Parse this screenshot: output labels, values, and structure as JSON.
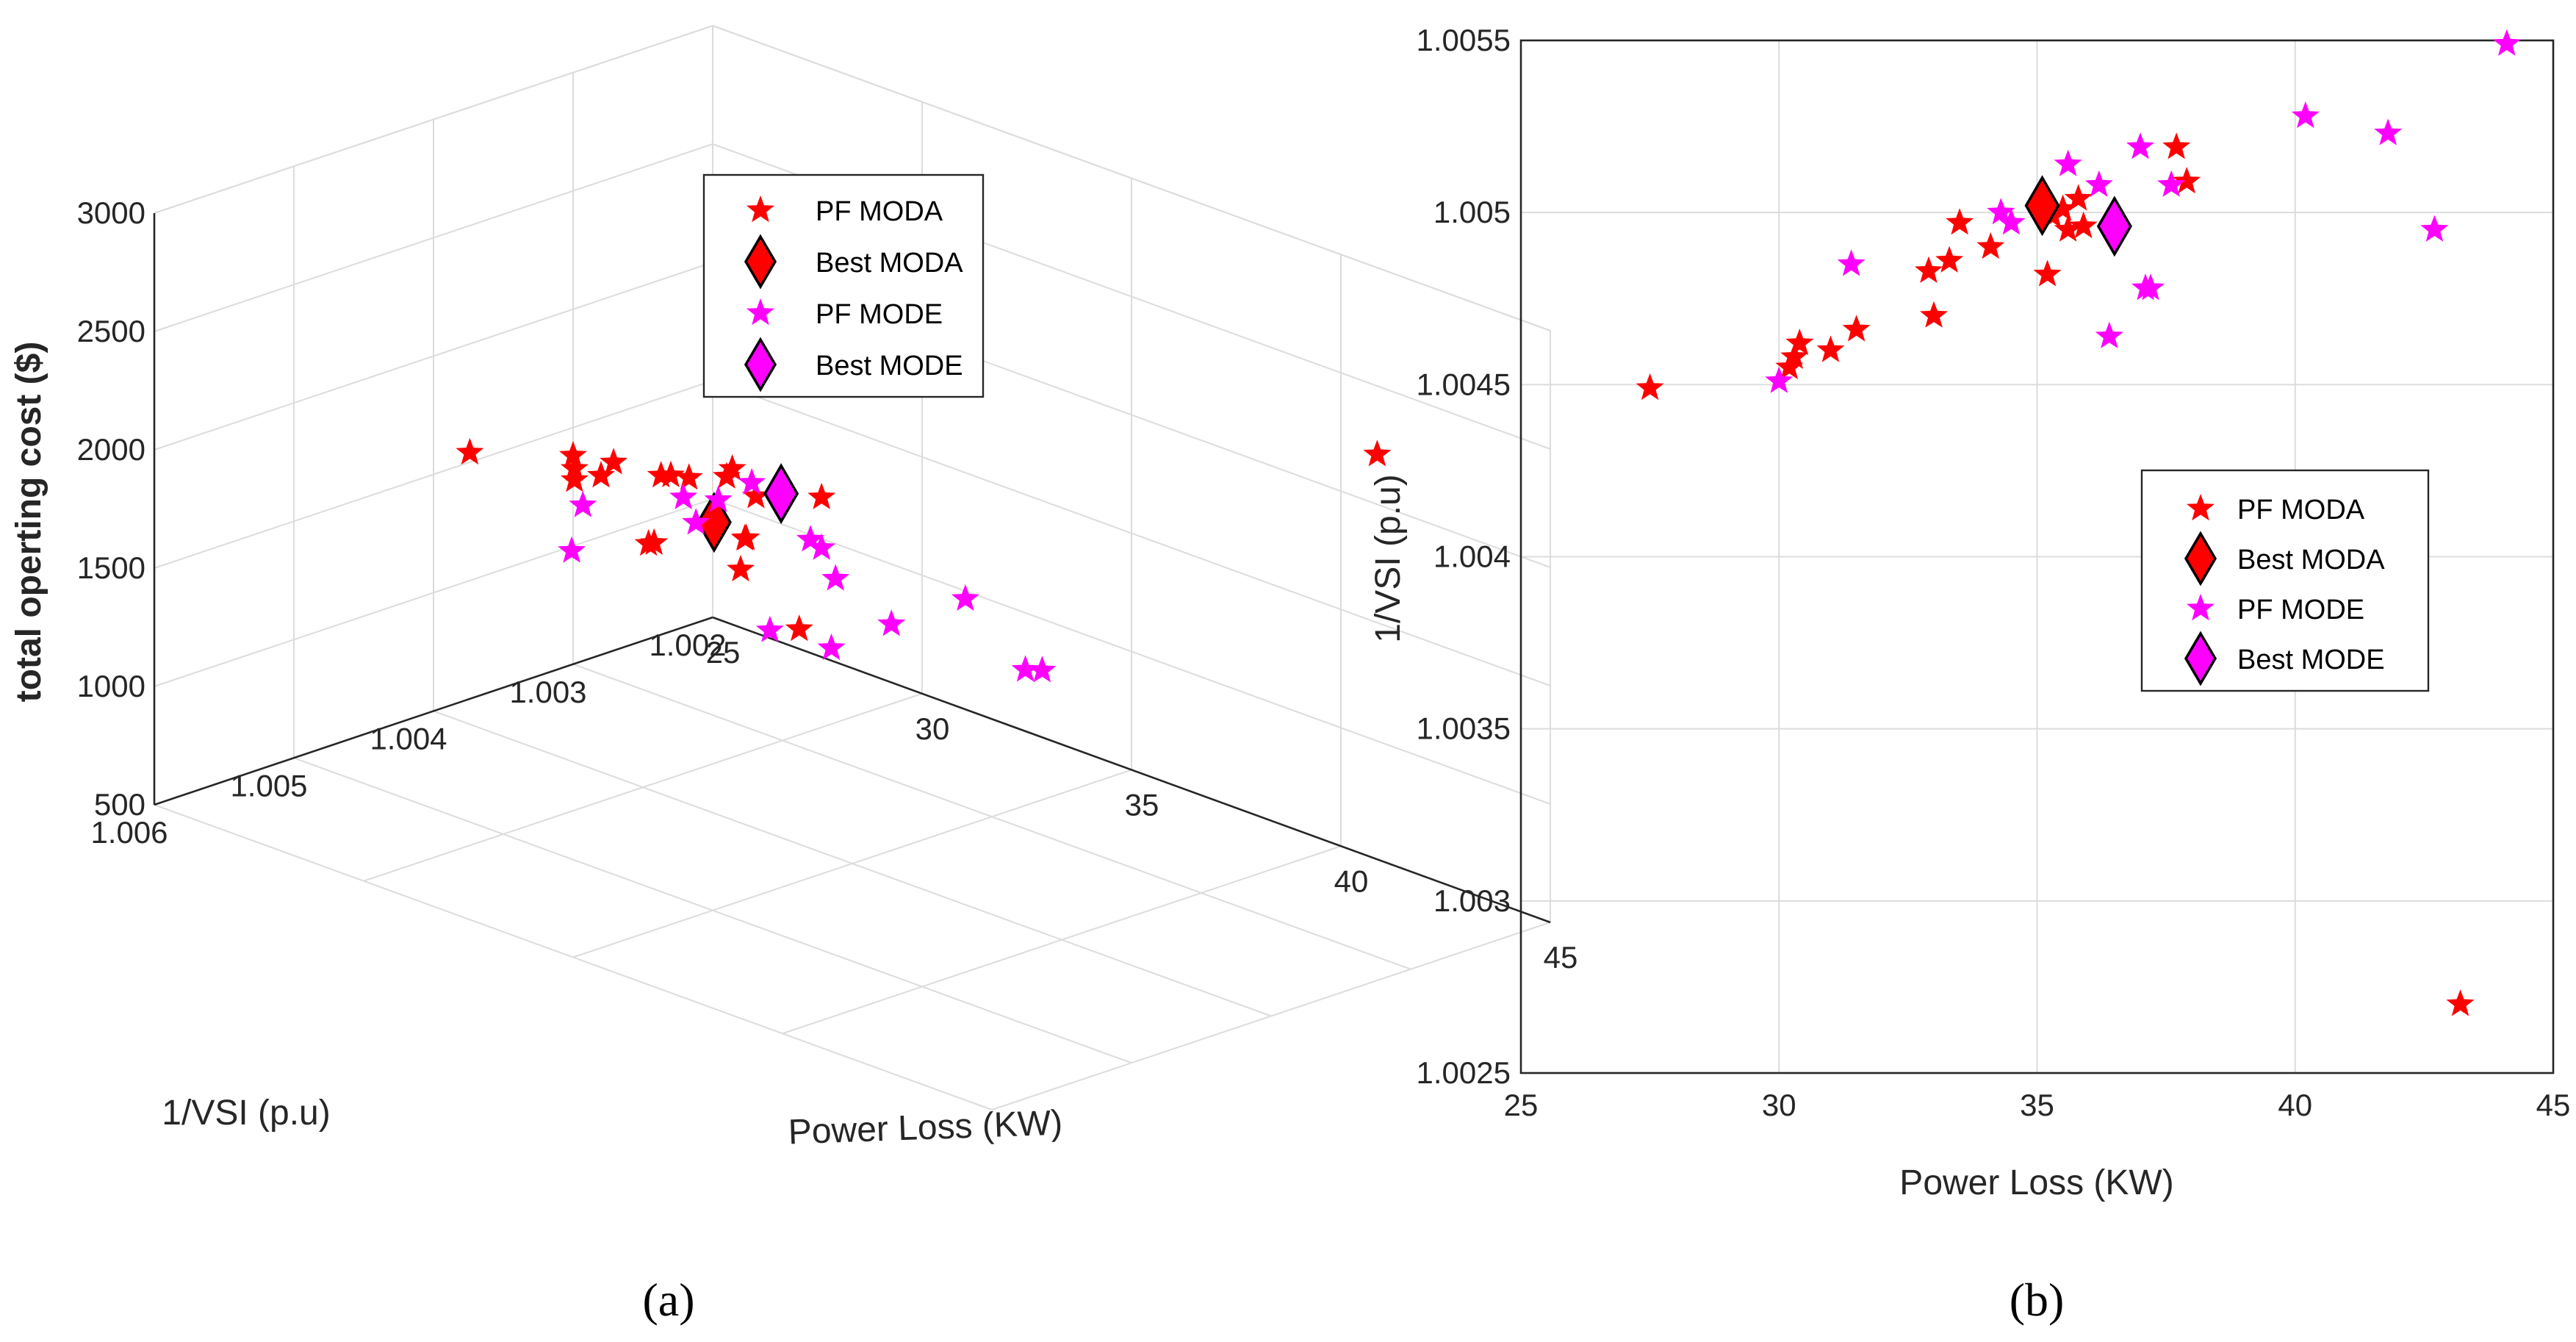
{
  "captions": {
    "a": "(a)",
    "b": "(b)"
  },
  "colors": {
    "moda": "#ff0000",
    "mode": "#ff00ff",
    "edge": "#000000"
  },
  "legend": [
    "PF MODA",
    "Best MODA",
    "PF MODE",
    "Best MODE"
  ],
  "chart_data": [
    {
      "type": "scatter3d",
      "panel": "a",
      "xlabel": "Power Loss (KW)",
      "ylabel": "1/VSI  (p.u)",
      "zlabel": "total operting cost ($)",
      "xticks": [
        "25",
        "30",
        "35",
        "40",
        "45"
      ],
      "yticks": [
        "1.002",
        "1.003",
        "1.004",
        "1.005",
        "1.006"
      ],
      "zticks": [
        "500",
        "1000",
        "1500",
        "2000",
        "2500",
        "3000"
      ],
      "xlim": [
        25,
        45
      ],
      "ylim": [
        1.002,
        1.006
      ],
      "zlim": [
        500,
        3000
      ],
      "legend_position": "top-right",
      "series": [
        {
          "name": "PF MODA",
          "marker": "star",
          "color": "#ff0000",
          "points": [
            [
              27.5,
              1.00449,
              1850
            ],
            [
              30.2,
              1.00455,
              1920
            ],
            [
              30.3,
              1.00458,
              1980
            ],
            [
              30.4,
              1.00462,
              2050
            ],
            [
              31.0,
              1.0046,
              2000
            ],
            [
              31.5,
              1.00466,
              2100
            ],
            [
              32.9,
              1.00483,
              1880
            ],
            [
              33.0,
              1.0047,
              2150
            ],
            [
              33.3,
              1.00486,
              2200
            ],
            [
              33.5,
              1.00497,
              1950
            ],
            [
              34.1,
              1.0049,
              2250
            ],
            [
              35.2,
              1.00482,
              2050
            ],
            [
              35.3,
              1.00499,
              2350
            ],
            [
              35.5,
              1.00501,
              2400
            ],
            [
              35.6,
              1.00495,
              2100
            ],
            [
              35.9,
              1.00496,
              2300
            ],
            [
              35.8,
              1.00504,
              2000
            ],
            [
              37.7,
              1.00519,
              1900
            ],
            [
              37.9,
              1.00509,
              2450
            ],
            [
              43.2,
              1.0027,
              2500
            ]
          ]
        },
        {
          "name": "Best MODA",
          "marker": "diamond",
          "color": "#ff0000",
          "points": [
            [
              35.1,
              1.00502,
              2150
            ]
          ]
        },
        {
          "name": "PF MODE",
          "marker": "star",
          "color": "#ff00ff",
          "points": [
            [
              30.0,
              1.00451,
              1600
            ],
            [
              31.4,
              1.00485,
              1950
            ],
            [
              34.3,
              1.005,
              2200
            ],
            [
              34.5,
              1.00497,
              2100
            ],
            [
              35.6,
              1.00514,
              2300
            ],
            [
              36.2,
              1.00508,
              2400
            ],
            [
              36.4,
              1.00464,
              2050
            ],
            [
              37.0,
              1.00519,
              1850
            ],
            [
              37.1,
              1.00478,
              1700
            ],
            [
              37.2,
              1.00478,
              2000
            ],
            [
              37.6,
              1.00508,
              2250
            ],
            [
              40.2,
              1.00528,
              2100
            ],
            [
              41.8,
              1.00523,
              2300
            ],
            [
              42.7,
              1.00495,
              2000
            ],
            [
              44.1,
              1.00549,
              2200
            ]
          ]
        },
        {
          "name": "Best MODE",
          "marker": "diamond",
          "color": "#ff00ff",
          "points": [
            [
              36.5,
              1.00496,
              2350
            ]
          ]
        }
      ]
    },
    {
      "type": "scatter",
      "panel": "b",
      "xlabel": "Power Loss (KW)",
      "ylabel": "1/VSI  (p.u)",
      "xticks": [
        "25",
        "30",
        "35",
        "40",
        "45"
      ],
      "yticks": [
        "1.0025",
        "1.003",
        "1.0035",
        "1.004",
        "1.0045",
        "1.005",
        "1.0055"
      ],
      "xlim": [
        25,
        45
      ],
      "ylim": [
        1.0025,
        1.0055
      ],
      "grid": true,
      "legend_position": "center-right",
      "series": [
        {
          "name": "PF MODA",
          "marker": "star",
          "color": "#ff0000",
          "points": [
            [
              27.5,
              1.00449
            ],
            [
              30.2,
              1.00455
            ],
            [
              30.3,
              1.00458
            ],
            [
              30.4,
              1.00462
            ],
            [
              31.0,
              1.0046
            ],
            [
              31.5,
              1.00466
            ],
            [
              32.9,
              1.00483
            ],
            [
              33.0,
              1.0047
            ],
            [
              33.3,
              1.00486
            ],
            [
              33.5,
              1.00497
            ],
            [
              34.1,
              1.0049
            ],
            [
              35.2,
              1.00482
            ],
            [
              35.3,
              1.00499
            ],
            [
              35.5,
              1.00501
            ],
            [
              35.6,
              1.00495
            ],
            [
              35.9,
              1.00496
            ],
            [
              35.8,
              1.00504
            ],
            [
              37.7,
              1.00519
            ],
            [
              37.9,
              1.00509
            ],
            [
              43.2,
              1.0027
            ]
          ]
        },
        {
          "name": "Best MODA",
          "marker": "diamond",
          "color": "#ff0000",
          "points": [
            [
              35.1,
              1.00502
            ]
          ]
        },
        {
          "name": "PF MODE",
          "marker": "star",
          "color": "#ff00ff",
          "points": [
            [
              30.0,
              1.00451
            ],
            [
              31.4,
              1.00485
            ],
            [
              34.3,
              1.005
            ],
            [
              34.5,
              1.00497
            ],
            [
              35.6,
              1.00514
            ],
            [
              36.2,
              1.00508
            ],
            [
              36.4,
              1.00464
            ],
            [
              37.0,
              1.00519
            ],
            [
              37.1,
              1.00478
            ],
            [
              37.2,
              1.00478
            ],
            [
              37.6,
              1.00508
            ],
            [
              40.2,
              1.00528
            ],
            [
              41.8,
              1.00523
            ],
            [
              42.7,
              1.00495
            ],
            [
              44.1,
              1.00549
            ]
          ]
        },
        {
          "name": "Best MODE",
          "marker": "diamond",
          "color": "#ff00ff",
          "points": [
            [
              36.5,
              1.00496
            ]
          ]
        }
      ]
    }
  ]
}
